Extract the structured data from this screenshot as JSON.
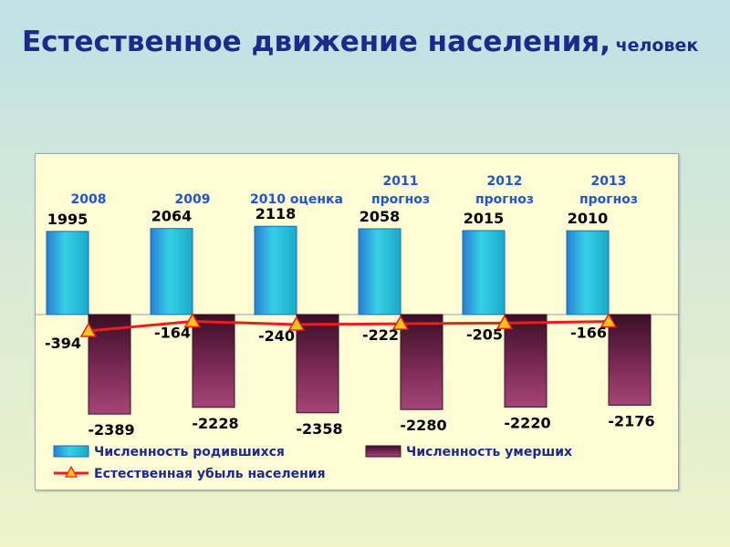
{
  "slide": {
    "title": "Естественное движение населения,",
    "unit": "человек"
  },
  "colors": {
    "births": "#1fb5d6",
    "deaths": "#8a2a55",
    "natural_decrease": "#ee1c1c",
    "marker": "#f5c518",
    "year_label": "#2255cc",
    "panel_background": "#fffdd6"
  },
  "chart_data": {
    "type": "bar",
    "title": "",
    "categories": [
      [
        "2008"
      ],
      [
        "2009"
      ],
      [
        "2010 оценка"
      ],
      [
        "2011",
        "прогноз"
      ],
      [
        "2012",
        "прогноз"
      ],
      [
        "2013",
        "прогноз"
      ]
    ],
    "series": [
      {
        "name": "Численность родившихся",
        "type": "bar",
        "values": [
          1995,
          2064,
          2118,
          2058,
          2015,
          2010
        ],
        "color": "#1fb5d6"
      },
      {
        "name": "Численность умерших",
        "type": "bar",
        "values": [
          -2389,
          -2228,
          -2358,
          -2280,
          -2220,
          -2176
        ],
        "color": "#8a2a55"
      },
      {
        "name": "Естественная убыль населения",
        "type": "line",
        "marker": "triangle",
        "values": [
          -394,
          -164,
          -240,
          -222,
          -205,
          -166
        ],
        "color": "#ee1c1c"
      }
    ],
    "data_labels": {
      "births": [
        "1995",
        "2064",
        "2118",
        "2058",
        "2015",
        "2010"
      ],
      "deaths": [
        "-2389",
        "-2228",
        "-2358",
        "-2280",
        "-2220",
        "-2176"
      ],
      "natural_decrease": [
        "-394",
        "-164",
        "-240",
        "-222",
        "-205",
        "-166"
      ]
    },
    "ylim": [
      -2500,
      2500
    ],
    "grid": false,
    "legend_position": "bottom"
  }
}
